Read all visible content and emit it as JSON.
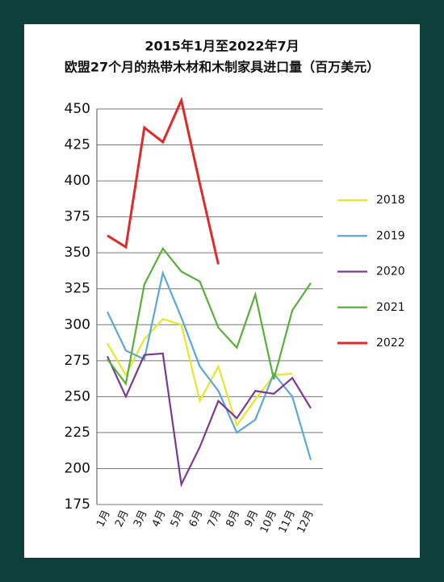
{
  "chart_data": {
    "type": "line",
    "title": "2015年1月至2022年7月",
    "subtitle": "欧盟27个月的热带木材和木制家具进口量（百万美元）",
    "categories": [
      "1月",
      "2月",
      "3月",
      "4月",
      "5月",
      "6月",
      "7月",
      "8月",
      "9月",
      "10月",
      "11月",
      "12月"
    ],
    "series": [
      {
        "name": "2018",
        "color": "#e8e62a",
        "values": [
          287,
          265,
          290,
          304,
          300,
          247,
          271,
          230,
          248,
          265,
          266,
          null
        ]
      },
      {
        "name": "2019",
        "color": "#5aa8d8",
        "values": [
          309,
          282,
          276,
          336,
          305,
          271,
          254,
          225,
          234,
          266,
          250,
          206
        ]
      },
      {
        "name": "2020",
        "color": "#7b3a92",
        "values": [
          278,
          250,
          279,
          280,
          189,
          215,
          247,
          235,
          254,
          252,
          263,
          242
        ]
      },
      {
        "name": "2021",
        "color": "#5aae3a",
        "values": [
          276,
          259,
          328,
          353,
          337,
          330,
          298,
          284,
          321,
          262,
          310,
          329
        ]
      },
      {
        "name": "2022",
        "color": "#e02a2a",
        "values": [
          362,
          354,
          437,
          427,
          456,
          398,
          342,
          null,
          null,
          null,
          null,
          null
        ]
      }
    ],
    "ylim": [
      175,
      450
    ],
    "yticks": [
      175,
      200,
      225,
      250,
      275,
      300,
      325,
      350,
      375,
      400,
      425,
      450
    ],
    "grid": true,
    "legend": "right"
  }
}
